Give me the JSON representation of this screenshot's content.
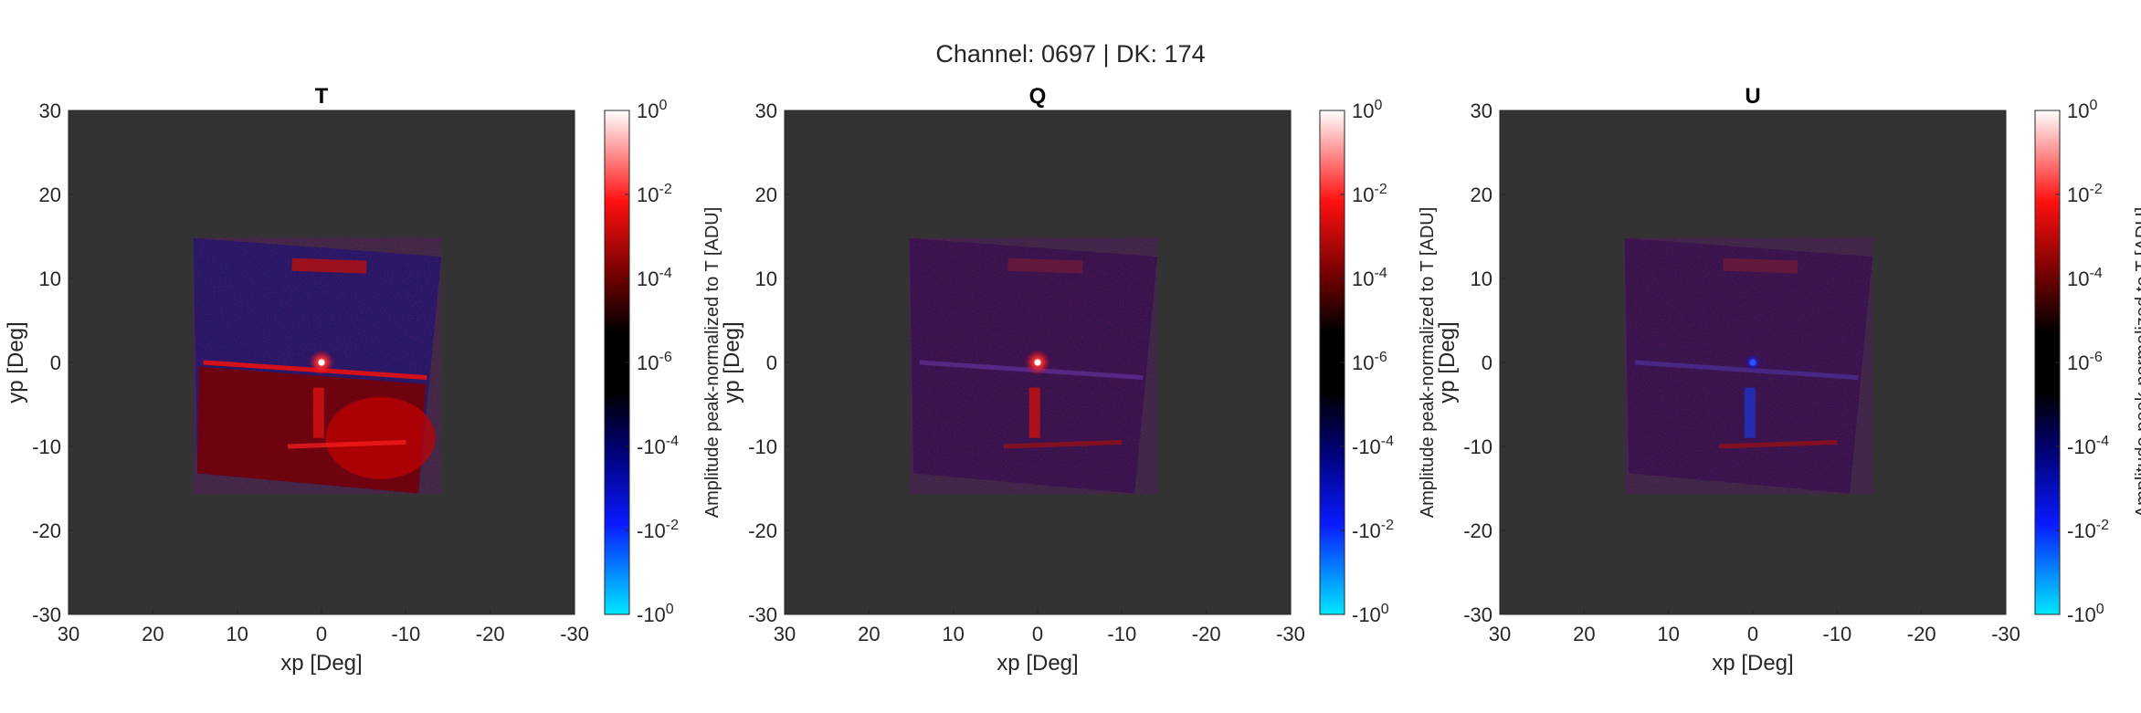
{
  "figure_title": "Channel: 0697 | DK: 174",
  "colors": {
    "axes_background": "#333333",
    "positive_high": "#ffffff",
    "positive_mid": "#ff0000",
    "zero": "#000000",
    "negative_mid": "#0000ff",
    "negative_high": "#00ffff",
    "t_field_background": "#141f5a",
    "q_field_background": "#2a1a3a",
    "u_field_background": "#2a1b3a"
  },
  "chart_data": [
    {
      "type": "heatmap",
      "title": "T",
      "xlabel": "xp [Deg]",
      "ylabel": "yp [Deg]",
      "xlim": [
        30,
        -30
      ],
      "ylim": [
        -30,
        30
      ],
      "x_reversed": true,
      "xticks": [
        "30",
        "20",
        "10",
        "0",
        "-10",
        "-20",
        "-30"
      ],
      "yticks": [
        "30",
        "20",
        "10",
        "0",
        "-10",
        "-20",
        "-30"
      ],
      "colorbar": {
        "label": "Amplitude peak-normalized to T [ADU]",
        "scale": "symlog",
        "ticks": [
          "10^0",
          "10^-2",
          "10^-4",
          "10^-6",
          "-10^-4",
          "-10^-2",
          "-10^0"
        ]
      },
      "peak": {
        "x": 0,
        "y": 0,
        "value": 1
      }
    },
    {
      "type": "heatmap",
      "title": "Q",
      "xlabel": "xp [Deg]",
      "ylabel": "yp [Deg]",
      "xlim": [
        30,
        -30
      ],
      "ylim": [
        -30,
        30
      ],
      "x_reversed": true,
      "xticks": [
        "30",
        "20",
        "10",
        "0",
        "-10",
        "-20",
        "-30"
      ],
      "yticks": [
        "30",
        "20",
        "10",
        "0",
        "-10",
        "-20",
        "-30"
      ],
      "colorbar": {
        "label": "Amplitude peak-normalized to T [ADU]",
        "scale": "symlog",
        "ticks": [
          "10^0",
          "10^-2",
          "10^-4",
          "10^-6",
          "-10^-4",
          "-10^-2",
          "-10^0"
        ]
      },
      "peak": {
        "x": 0,
        "y": 0,
        "value": 0.5
      }
    },
    {
      "type": "heatmap",
      "title": "U",
      "xlabel": "xp [Deg]",
      "ylabel": "yp [Deg]",
      "xlim": [
        30,
        -30
      ],
      "ylim": [
        -30,
        30
      ],
      "x_reversed": true,
      "xticks": [
        "30",
        "20",
        "10",
        "0",
        "-10",
        "-20",
        "-30"
      ],
      "yticks": [
        "30",
        "20",
        "10",
        "0",
        "-10",
        "-20",
        "-30"
      ],
      "colorbar": {
        "label": "Amplitude peak-normalized to T [ADU]",
        "scale": "symlog",
        "ticks": [
          "10^0",
          "10^-2",
          "10^-4",
          "10^-6",
          "-10^-4",
          "-10^-2",
          "-10^0"
        ]
      },
      "peak": {
        "x": 0,
        "y": 0,
        "value": -0.001
      }
    }
  ]
}
